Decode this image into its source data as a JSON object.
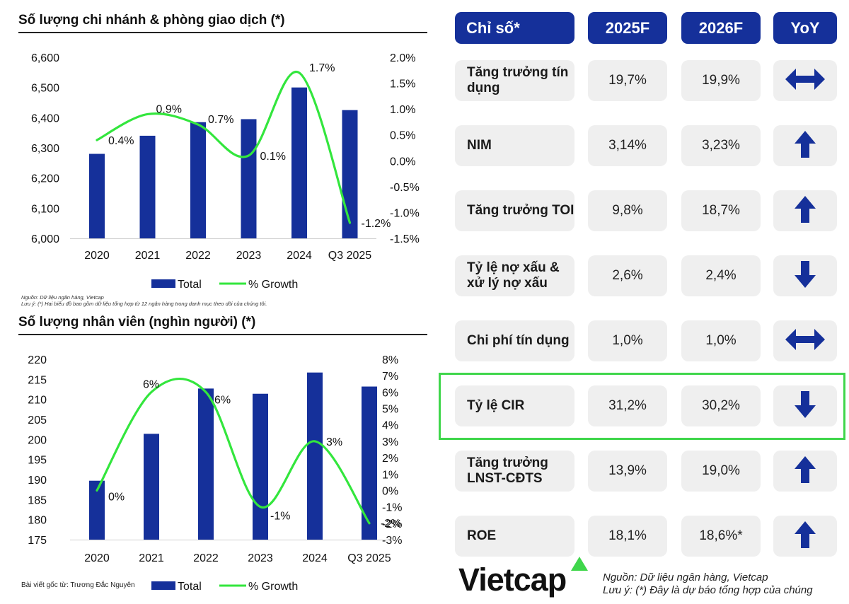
{
  "charts": {
    "branches": {
      "title": "Số lượng chi nhánh & phòng giao dịch (*)",
      "note_source": "Nguồn: Dữ liệu ngân hàng, Vietcap",
      "note_footnote": "Lưu ý: (*) Hai biểu đồ bao gồm dữ liệu tổng hợp từ 12 ngân hàng trong danh mục theo dõi của chúng tôi."
    },
    "staff": {
      "title": "Số lượng nhân viên (nghìn người) (*)",
      "author": "Bài viết gốc từ: Trương Đắc Nguyên"
    }
  },
  "chart_data": [
    {
      "type": "bar",
      "title": "Số lượng chi nhánh & phòng giao dịch (*)",
      "categories": [
        "2020",
        "2021",
        "2022",
        "2023",
        "2024",
        "Q3 2025"
      ],
      "series": [
        {
          "name": "Total",
          "axis": "left",
          "values": [
            6280,
            6340,
            6385,
            6395,
            6500,
            6425
          ]
        },
        {
          "name": "% Growth",
          "axis": "right",
          "type": "line",
          "values": [
            0.4,
            0.9,
            0.7,
            0.1,
            1.7,
            -1.2
          ],
          "labels": [
            "0.4%",
            "0.9%",
            "0.7%",
            "0.1%",
            "1.7%",
            "-1.2%"
          ]
        }
      ],
      "ylim": [
        6000,
        6600
      ],
      "yticks": [
        "6,000",
        "6,100",
        "6,200",
        "6,300",
        "6,400",
        "6,500",
        "6,600"
      ],
      "y2lim": [
        -1.5,
        2.0
      ],
      "y2ticks": [
        "-1.5%",
        "-1.0%",
        "-0.5%",
        "0.0%",
        "0.5%",
        "1.0%",
        "1.5%",
        "2.0%"
      ],
      "legend": [
        "Total",
        "% Growth"
      ],
      "colors": {
        "bar": "#15309a",
        "line": "#33e63d"
      }
    },
    {
      "type": "bar",
      "title": "Số lượng nhân viên (nghìn người) (*)",
      "categories": [
        "2020",
        "2021",
        "2022",
        "2023",
        "2024",
        "Q3 2025"
      ],
      "series": [
        {
          "name": "Total",
          "axis": "left",
          "values": [
            189.7,
            201.4,
            212.7,
            211.4,
            216.7,
            213.2
          ]
        },
        {
          "name": "% Growth",
          "axis": "right",
          "type": "line",
          "values": [
            0,
            6,
            6,
            -1,
            3,
            -2
          ],
          "labels": [
            "0%",
            "6%",
            "6%",
            "-1%",
            "3%",
            "-2%"
          ]
        }
      ],
      "ylim": [
        175,
        220
      ],
      "yticks": [
        "175",
        "180",
        "185",
        "190",
        "195",
        "200",
        "205",
        "210",
        "215",
        "220"
      ],
      "y2lim": [
        -3,
        8
      ],
      "y2ticks": [
        "-3%",
        "-2%",
        "-1%",
        "0%",
        "1%",
        "2%",
        "3%",
        "4%",
        "5%",
        "6%",
        "7%",
        "8%"
      ],
      "legend": [
        "Total",
        "% Growth"
      ],
      "colors": {
        "bar": "#15309a",
        "line": "#33e63d"
      }
    }
  ],
  "table": {
    "headers": [
      "Chỉ số*",
      "2025F",
      "2026F",
      "YoY"
    ],
    "rows": [
      {
        "label": "Tăng trưởng tín dụng",
        "y2025": "19,7%",
        "y2026": "19,9%",
        "yoy": "flat"
      },
      {
        "label": "NIM",
        "y2025": "3,14%",
        "y2026": "3,23%",
        "yoy": "up"
      },
      {
        "label": "Tăng trưởng TOI",
        "y2025": "9,8%",
        "y2026": "18,7%",
        "yoy": "up"
      },
      {
        "label": "Tỷ lệ nợ xấu & xử lý nợ xấu",
        "y2025": "2,6%",
        "y2026": "2,4%",
        "yoy": "down"
      },
      {
        "label": "Chi phí tín dụng",
        "y2025": "1,0%",
        "y2026": "1,0%",
        "yoy": "flat"
      },
      {
        "label": "Tỷ lệ CIR",
        "y2025": "31,2%",
        "y2026": "30,2%",
        "yoy": "down",
        "highlighted": true
      },
      {
        "label": "Tăng trưởng LNST-CĐTS",
        "y2025": "13,9%",
        "y2026": "19,0%",
        "yoy": "up"
      },
      {
        "label": "ROE",
        "y2025": "18,1%",
        "y2026": "18,6%*",
        "yoy": "up"
      }
    ],
    "colors": {
      "header": "#15309a",
      "arrow": "#15309a",
      "highlight": "#3fd64b"
    }
  },
  "footer": {
    "logo": "Vietcap",
    "source": "Nguồn: Dữ liệu ngân hàng, Vietcap",
    "note": "Lưu ý: (*) Đây là dự báo tổng hợp của chúng"
  }
}
